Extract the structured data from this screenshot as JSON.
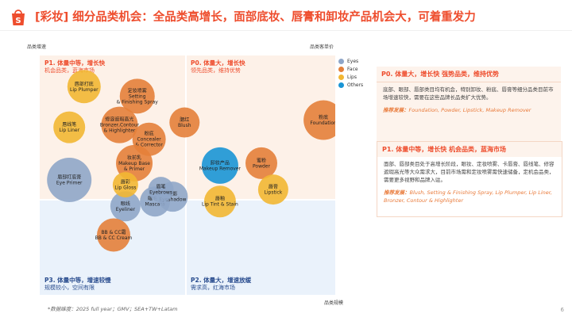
{
  "title": "[彩妆] 细分品类机会：全品类高增长，面部底妆、唇膏和卸妆产品机会大，可着重发力",
  "axis_labels": {
    "y": "品类增速",
    "x_top": "品类客单价",
    "x_bottom": "品类规模"
  },
  "quadrants": [
    {
      "id": "p0",
      "title": "P0. 体量大，增长快",
      "subtitle": "领先品类，维持优势",
      "title_color": "#ee4d2d",
      "sub_color": "#ee4d2d",
      "bg": "#fdf1e8"
    },
    {
      "id": "p1",
      "title": "P1. 体量中等，增长快",
      "subtitle": "机会品类，蓝海市场",
      "title_color": "#ee4d2d",
      "sub_color": "#ee4d2d",
      "bg": "#fdf1e8"
    },
    {
      "id": "p3",
      "title": "P3. 体量中等，增速较慢",
      "subtitle": "规模较小，空间有限",
      "title_color": "#2a4d8f",
      "sub_color": "#2a4d8f",
      "bg": "#eaf2fb"
    },
    {
      "id": "p2",
      "title": "P2. 体量大，增速放缓",
      "subtitle": "需求高，红海市场",
      "title_color": "#2a4d8f",
      "sub_color": "#2a4d8f",
      "bg": "#eaf2fb"
    }
  ],
  "legend": [
    {
      "label": "Eyes",
      "color": "#8fa6c8"
    },
    {
      "label": "Face",
      "color": "#e4803a"
    },
    {
      "label": "Lips",
      "color": "#f2b733"
    },
    {
      "label": "Others",
      "color": "#1a95d5"
    }
  ],
  "chart_data": {
    "type": "scatter",
    "x_axis": "品类规模",
    "y_axis": "品类增速",
    "series": [
      {
        "name": "Eyes",
        "color": "#8fa6c8",
        "points": [
          {
            "label": "眉部打底膏\nEye Primer",
            "x": 0.1,
            "y": 0.48,
            "size": 0.9
          },
          {
            "label": "眼线\nEyeliner",
            "x": 0.29,
            "y": 0.37,
            "size": 0.45
          },
          {
            "label": "睫毛膏\nMascara",
            "x": 0.39,
            "y": 0.39,
            "size": 0.45
          },
          {
            "label": "眼影\nEyeshadow",
            "x": 0.45,
            "y": 0.41,
            "size": 0.45
          },
          {
            "label": "眉笔\nEyebrows",
            "x": 0.41,
            "y": 0.44,
            "size": 0.3
          }
        ]
      },
      {
        "name": "Face",
        "color": "#e4803a",
        "points": [
          {
            "label": "定妆喷雾\nSetting\n& Finishing Spray",
            "x": 0.33,
            "y": 0.83,
            "size": 0.6
          },
          {
            "label": "修容遮瑕高光\nBronzer,Contour\n& Highlighter",
            "x": 0.27,
            "y": 0.71,
            "size": 0.65
          },
          {
            "label": "粉底\nConcealer\n& Corrector",
            "x": 0.37,
            "y": 0.65,
            "size": 0.55
          },
          {
            "label": "妆前乳\nMakeup Base\n& Primer",
            "x": 0.32,
            "y": 0.55,
            "size": 0.65
          },
          {
            "label": "腮红\nBlush",
            "x": 0.49,
            "y": 0.72,
            "size": 0.45
          },
          {
            "label": "BB & CC霜\nBB & CC Cream",
            "x": 0.25,
            "y": 0.25,
            "size": 0.55
          },
          {
            "label": "粉底\nFoundation",
            "x": 0.96,
            "y": 0.73,
            "size": 0.75
          },
          {
            "label": "蜜粉\nPowder",
            "x": 0.75,
            "y": 0.55,
            "size": 0.5
          }
        ]
      },
      {
        "name": "Lips",
        "color": "#f2b733",
        "points": [
          {
            "label": "唇部打底\nLip Plumper",
            "x": 0.15,
            "y": 0.87,
            "size": 0.55
          },
          {
            "label": "唇线笔\nLip Liner",
            "x": 0.1,
            "y": 0.7,
            "size": 0.5
          },
          {
            "label": "唇彩\nLip Gloss",
            "x": 0.29,
            "y": 0.46,
            "size": 0.3
          },
          {
            "label": "唇釉\nLip Tint & Stain",
            "x": 0.61,
            "y": 0.39,
            "size": 0.5
          },
          {
            "label": "唇膏\nLipstick",
            "x": 0.79,
            "y": 0.44,
            "size": 0.45
          }
        ]
      },
      {
        "name": "Others",
        "color": "#1a95d5",
        "points": [
          {
            "label": "卸妆产品\nMakeup Remover",
            "x": 0.61,
            "y": 0.54,
            "size": 0.65
          }
        ]
      }
    ]
  },
  "cards": [
    {
      "head": "P0. 体量大，增长快 强势品类，维持优势",
      "body": "底部、眼部、唇部类目均有机会，特别卸妆、粉底、唇膏等细分品类目前市场增速较快，需要在这些品牌长品类扩大优势。",
      "rec_key": "推荐发展：",
      "rec": "Foundation, Powder, Lipstick, Makeup Remover"
    },
    {
      "head": "P1. 体量中等，增长快 机会品类，蓝海市场",
      "body": "面部、唇部类目处于高增长阶段，眼妆、定妆喷雾、卡唇膏、唇线笔、修容遮瑕高光等大众需求大，目前市场需和定妆喷雾需快速储备，定机会品类，需要更多视野和品牌入驻。",
      "rec_key": "推荐发展：",
      "rec": "Blush, Setting & Finishing Spray, Lip Plumper, Lip Liner, Bronzer, Contour & Highlighter"
    }
  ],
  "footnote": "*数据维度：2025 full year；GMV；SEA+TW+Latam",
  "page_number": "6"
}
